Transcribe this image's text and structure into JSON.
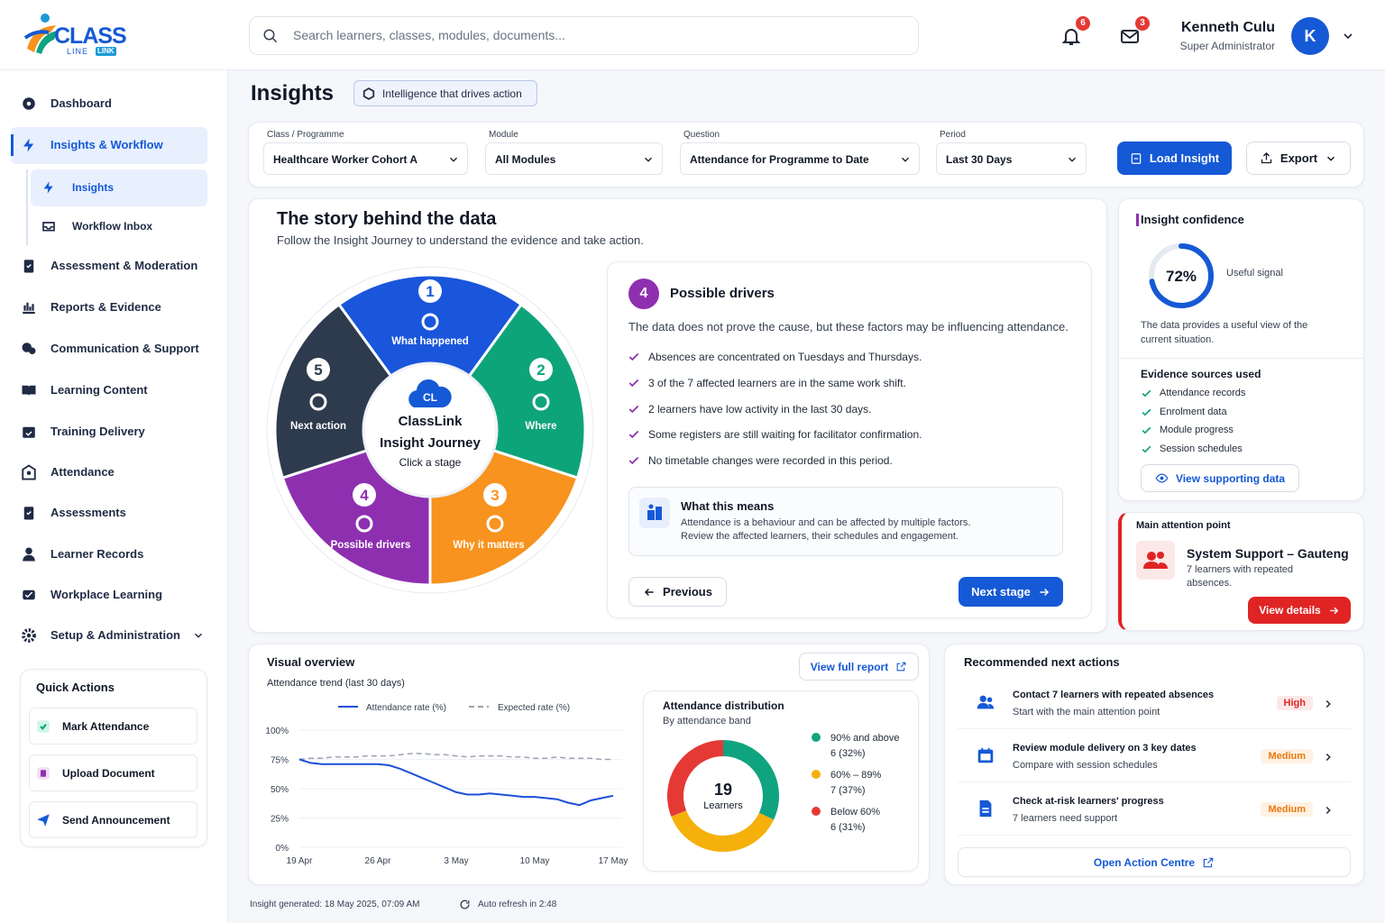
{
  "logo": {
    "name": "CLASS",
    "tagline": "LINE",
    "badge": "LINK"
  },
  "search": {
    "placeholder": "Search learners, classes, modules, documents..."
  },
  "header": {
    "notifications": 6,
    "messages": 3,
    "user": {
      "name": "Kenneth Culu",
      "role": "Super Administrator",
      "initial": "K"
    }
  },
  "sidebar": {
    "nav": [
      {
        "label": "Dashboard"
      },
      {
        "label": "Insights & Workflow",
        "active": true,
        "children": [
          {
            "label": "Insights",
            "active": true
          },
          {
            "label": "Workflow Inbox"
          }
        ]
      },
      {
        "label": "Assessment & Moderation"
      },
      {
        "label": "Reports & Evidence"
      },
      {
        "label": "Communication & Support"
      },
      {
        "label": "Learning Content"
      },
      {
        "label": "Training Delivery"
      },
      {
        "label": "Attendance"
      },
      {
        "label": "Assessments"
      },
      {
        "label": "Learner Records"
      },
      {
        "label": "Workplace Learning"
      },
      {
        "label": "Setup & Administration",
        "expandable": true
      }
    ],
    "quick_actions": {
      "title": "Quick Actions",
      "items": [
        "Mark Attendance",
        "Upload Document",
        "Send Announcement"
      ]
    }
  },
  "page": {
    "title": "Insights",
    "tag": "Intelligence that drives action"
  },
  "filters": {
    "fields": [
      {
        "label": "Class / Programme",
        "value": "Healthcare Worker Cohort A"
      },
      {
        "label": "Module",
        "value": "All Modules"
      },
      {
        "label": "Question",
        "value": "Attendance for Programme to Date"
      },
      {
        "label": "Period",
        "value": "Last 30 Days"
      }
    ],
    "load": "Load Insight",
    "export": "Export"
  },
  "story": {
    "title": "The story behind the data",
    "subtitle": "Follow the Insight Journey to understand the evidence and take action.",
    "wheel": {
      "stages": [
        {
          "number": 1,
          "label": "What happened",
          "color": "#1a56db"
        },
        {
          "number": 2,
          "label": "Where",
          "color": "#0ea47a"
        },
        {
          "number": 3,
          "label": "Why it matters",
          "color": "#f7931e"
        },
        {
          "number": 4,
          "label": "Possible drivers",
          "color": "#8e2fb0"
        },
        {
          "number": 5,
          "label": "Next action",
          "color": "#2e3a4d"
        }
      ],
      "center": {
        "logo": "CL",
        "name": "ClassLink",
        "title": "Insight Journey",
        "hint": "Click a stage"
      }
    },
    "stage": {
      "number": 4,
      "title": "Possible drivers",
      "intro": "The data does not prove the cause, but these factors may be influencing attendance.",
      "drivers": [
        "Absences are concentrated on Tuesdays and Thursdays.",
        "3 of the 7 affected learners are in the same work shift.",
        "2 learners have low activity in the last 30 days.",
        "Some registers are still waiting for facilitator confirmation.",
        "No timetable changes were recorded in this period."
      ],
      "meaning": {
        "title": "What this means",
        "lines": [
          "Attendance is a behaviour and can be affected by multiple factors.",
          "Review the affected learners, their schedules and engagement."
        ]
      },
      "previous": "Previous",
      "next": "Next stage"
    }
  },
  "confidence": {
    "title": "Insight confidence",
    "value": 72,
    "value_label": "72%",
    "signal": "Useful signal",
    "description": "The data provides a useful view of the current situation.",
    "evidence_title": "Evidence sources used",
    "evidence": [
      "Attendance records",
      "Enrolment data",
      "Module progress",
      "Session schedules"
    ],
    "button": "View supporting data"
  },
  "attention": {
    "label": "Main attention point",
    "title": "System Support – Gauteng",
    "description": "7 learners with repeated absences.",
    "button": "View details"
  },
  "overview": {
    "button": "View full report"
  },
  "chart_data": [
    {
      "type": "line",
      "title": "Visual overview",
      "subtitle": "Attendance trend (last 30 days)",
      "categories": [
        "19 Apr",
        null,
        null,
        null,
        null,
        null,
        null,
        "26 Apr",
        null,
        null,
        null,
        null,
        null,
        null,
        "3 May",
        null,
        null,
        null,
        null,
        null,
        null,
        "10 May",
        null,
        null,
        null,
        null,
        null,
        null,
        "17 May"
      ],
      "series": [
        {
          "name": "Attendance rate (%)",
          "color": "#1d4ed8",
          "values": [
            75,
            72,
            71,
            71,
            71,
            71,
            71,
            71,
            70,
            67,
            63,
            59,
            55,
            51,
            47,
            45,
            45,
            46,
            45,
            44,
            43,
            43,
            42,
            41,
            38,
            36,
            40,
            42,
            44
          ]
        },
        {
          "name": "Expected rate (%)",
          "color": "#9ca3af",
          "dashed": true,
          "values": [
            75,
            76,
            76,
            77,
            77,
            77,
            78,
            78,
            78,
            79,
            80,
            80,
            79,
            79,
            78,
            77,
            78,
            78,
            78,
            77,
            77,
            76,
            76,
            77,
            76,
            76,
            76,
            75,
            75
          ]
        }
      ],
      "ylim": [
        0,
        100
      ],
      "yticks": [
        {
          "value": 0,
          "label": "0%"
        },
        {
          "value": 25,
          "label": "25%"
        },
        {
          "value": 50,
          "label": "50%"
        },
        {
          "value": 75,
          "label": "75%"
        },
        {
          "value": 100,
          "label": "100%"
        }
      ],
      "grid": true
    },
    {
      "type": "pie",
      "donut": true,
      "title": "Attendance distribution",
      "subtitle": "By attendance band",
      "total": 19,
      "total_label": "Learners",
      "categories": [
        "90% and above",
        "60% – 89%",
        "Below 60%"
      ],
      "values": [
        32,
        37,
        31
      ],
      "value_labels": [
        "6 (32%)",
        "7 (37%)",
        "6 (31%)"
      ],
      "colors": [
        "#10a37f",
        "#f5b00b",
        "#e53935"
      ]
    }
  ],
  "actions": {
    "title": "Recommended next actions",
    "items": [
      {
        "title": "Contact 7 learners with repeated absences",
        "subtitle": "Start with the main attention point",
        "priority": "High"
      },
      {
        "title": "Review module delivery on 3 key dates",
        "subtitle": "Compare with session schedules",
        "priority": "Medium"
      },
      {
        "title": "Check at-risk learners' progress",
        "subtitle": "7 learners need support",
        "priority": "Medium"
      }
    ],
    "button": "Open Action Centre"
  },
  "footer": {
    "generated": "Insight generated: 18 May 2025, 07:09 AM",
    "refresh": "Auto refresh in 2:48"
  }
}
